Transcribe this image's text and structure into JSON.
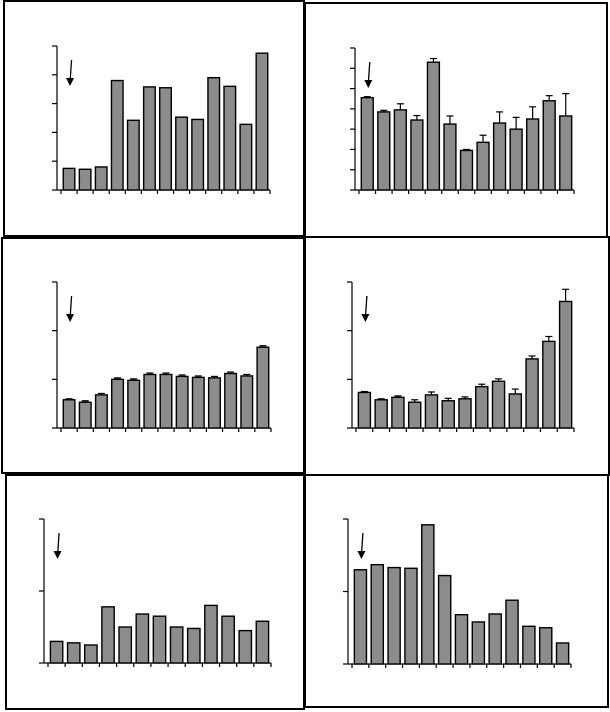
{
  "colors": {
    "bar_fill": "#8c8c8c",
    "bar_stroke": "#000000",
    "frame": "#000000",
    "background": "#ffffff"
  },
  "chart_data": [
    {
      "type": "bar",
      "panel": "top-left",
      "error_bars": false,
      "marker": "arrow-down-first-bar",
      "ylim": [
        0,
        5
      ],
      "values": [
        0.75,
        0.72,
        0.8,
        3.8,
        2.42,
        3.58,
        3.55,
        2.53,
        2.45,
        3.9,
        3.6,
        2.28,
        4.75
      ]
    },
    {
      "type": "bar",
      "panel": "top-right",
      "error_bars": true,
      "marker": "arrow-down-first-bar",
      "ylim": [
        0,
        7
      ],
      "values": [
        4.55,
        3.85,
        3.95,
        3.45,
        6.3,
        3.25,
        1.95,
        2.35,
        3.3,
        3.0,
        3.5,
        4.4,
        3.65
      ],
      "errors": [
        0.05,
        0.08,
        0.3,
        0.22,
        0.18,
        0.4,
        0.05,
        0.35,
        0.55,
        0.58,
        0.6,
        0.25,
        1.1
      ]
    },
    {
      "type": "bar",
      "panel": "middle-left",
      "error_bars": true,
      "marker": "arrow-down-first-bar",
      "ylim": [
        0,
        3
      ],
      "values": [
        0.58,
        0.53,
        0.68,
        1.0,
        0.98,
        1.1,
        1.1,
        1.06,
        1.04,
        1.03,
        1.12,
        1.07,
        1.66
      ],
      "errors": [
        0.02,
        0.03,
        0.03,
        0.03,
        0.03,
        0.03,
        0.03,
        0.03,
        0.03,
        0.03,
        0.03,
        0.03,
        0.03
      ]
    },
    {
      "type": "bar",
      "panel": "middle-right",
      "error_bars": true,
      "marker": "arrow-down-first-bar",
      "ylim": [
        0,
        3
      ],
      "values": [
        0.73,
        0.58,
        0.63,
        0.53,
        0.68,
        0.56,
        0.6,
        0.85,
        0.96,
        0.7,
        1.42,
        1.78,
        2.6
      ],
      "errors": [
        0.02,
        0.02,
        0.03,
        0.05,
        0.06,
        0.05,
        0.04,
        0.05,
        0.05,
        0.1,
        0.06,
        0.1,
        0.25
      ]
    },
    {
      "type": "bar",
      "panel": "bottom-left",
      "error_bars": false,
      "marker": "arrow-down-first-bar",
      "ylim": [
        0,
        2
      ],
      "values": [
        0.3,
        0.28,
        0.25,
        0.78,
        0.5,
        0.68,
        0.65,
        0.5,
        0.48,
        0.8,
        0.65,
        0.45,
        0.58
      ]
    },
    {
      "type": "bar",
      "panel": "bottom-right",
      "error_bars": false,
      "marker": "arrow-down-first-bar",
      "ylim": [
        0,
        2
      ],
      "values": [
        1.3,
        1.37,
        1.33,
        1.32,
        1.92,
        1.22,
        0.68,
        0.58,
        0.69,
        0.88,
        0.52,
        0.5,
        0.29
      ]
    }
  ]
}
